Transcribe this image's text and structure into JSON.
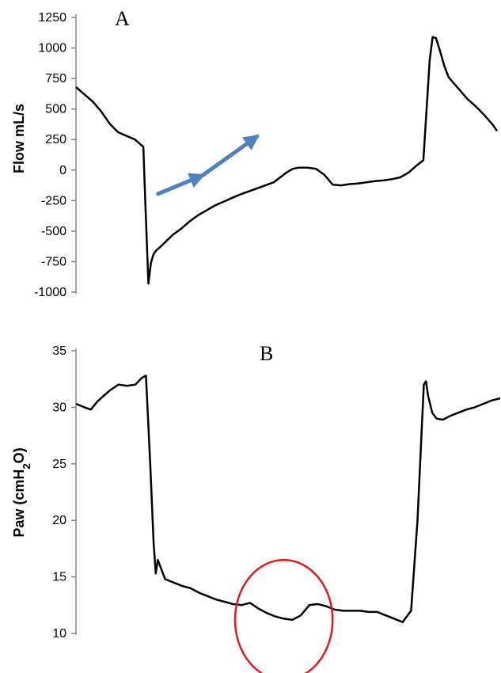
{
  "chart_data": [
    {
      "type": "line",
      "panel_label": "A",
      "ylabel": "Flow mL/s",
      "xlabel": "",
      "ylim": [
        -1000,
        1250
      ],
      "yticks": [
        1250,
        1000,
        750,
        500,
        250,
        0,
        -250,
        -500,
        -750,
        -1000
      ],
      "x_axis_visible": false,
      "grid": false,
      "line_color": "#000000",
      "series": [
        {
          "x": [
            0,
            2,
            4,
            6,
            8,
            10,
            12,
            14,
            16,
            16.5,
            17.2,
            17.8,
            18.4,
            19,
            20,
            21.5,
            23,
            25,
            27,
            29,
            31,
            33,
            35,
            37,
            39,
            41,
            43,
            45,
            47,
            48.5,
            50,
            51.5,
            53,
            55,
            57,
            59,
            61,
            63,
            65,
            67,
            69,
            71,
            73,
            75,
            77,
            79,
            81,
            82.5,
            84,
            84.7,
            85.5,
            86.5,
            87.5,
            88.5,
            90,
            91.5,
            93,
            95,
            97,
            99,
            100
          ],
          "values": [
            680,
            620,
            560,
            480,
            380,
            310,
            280,
            250,
            190,
            -300,
            -930,
            -760,
            -690,
            -660,
            -630,
            -580,
            -530,
            -480,
            -420,
            -370,
            -330,
            -290,
            -260,
            -230,
            -200,
            -175,
            -150,
            -125,
            -100,
            -60,
            -20,
            10,
            20,
            20,
            10,
            -40,
            -120,
            -125,
            -115,
            -110,
            -100,
            -90,
            -85,
            -75,
            -60,
            -20,
            40,
            80,
            900,
            1090,
            1080,
            970,
            850,
            760,
            700,
            640,
            580,
            520,
            450,
            370,
            320
          ]
        }
      ],
      "annotations": [
        {
          "type": "arrow",
          "color": "#4f81bd",
          "x": [
            19.5,
            30
          ],
          "y": [
            -195,
            -45
          ]
        },
        {
          "type": "arrow",
          "color": "#4f81bd",
          "x": [
            30,
            43
          ],
          "y": [
            -45,
            275
          ]
        }
      ]
    },
    {
      "type": "line",
      "panel_label": "B",
      "ylabel": "Paw (cmH2O)",
      "ylabel_parts": {
        "before": "Paw (cmH",
        "sub": "2",
        "after": "O)"
      },
      "xlabel": "",
      "ylim": [
        10,
        35
      ],
      "yticks": [
        35,
        30,
        25,
        20,
        15,
        10
      ],
      "x_axis_visible": false,
      "grid": false,
      "line_color": "#000000",
      "series": [
        {
          "x": [
            0,
            2,
            3.5,
            5,
            6.5,
            8,
            10,
            12,
            14,
            15.5,
            16.5,
            17.5,
            18.3,
            18.8,
            19.3,
            20,
            21,
            23,
            25,
            27,
            29,
            31,
            33,
            35,
            37,
            39,
            41,
            43,
            45,
            47,
            49,
            51,
            53,
            55,
            57,
            59,
            61,
            63,
            65,
            67,
            69,
            71,
            73,
            75,
            77,
            79,
            80.5,
            81.5,
            82,
            82.5,
            83,
            84,
            85,
            86.5,
            88,
            90,
            92,
            94,
            96,
            98,
            100
          ],
          "values": [
            30.3,
            30.0,
            29.8,
            30.5,
            31.0,
            31.5,
            32.0,
            31.9,
            32.0,
            32.6,
            32.8,
            25.0,
            18.0,
            15.3,
            16.5,
            15.8,
            14.8,
            14.5,
            14.2,
            14.0,
            13.6,
            13.3,
            13.0,
            12.8,
            12.6,
            12.5,
            12.7,
            12.2,
            11.8,
            11.5,
            11.3,
            11.2,
            11.6,
            12.5,
            12.6,
            12.4,
            12.1,
            12.0,
            12.0,
            12.0,
            11.9,
            11.9,
            11.6,
            11.3,
            11.0,
            12.0,
            20.0,
            28.0,
            32.0,
            32.3,
            31.0,
            29.5,
            29.0,
            28.9,
            29.2,
            29.5,
            29.8,
            30.0,
            30.3,
            30.6,
            30.8
          ]
        }
      ],
      "annotations": [
        {
          "type": "ellipse",
          "color": "#e31a1c",
          "center": [
            49,
            11.2
          ],
          "radius_x": 11.5,
          "radius_y": 5.3
        }
      ]
    }
  ]
}
